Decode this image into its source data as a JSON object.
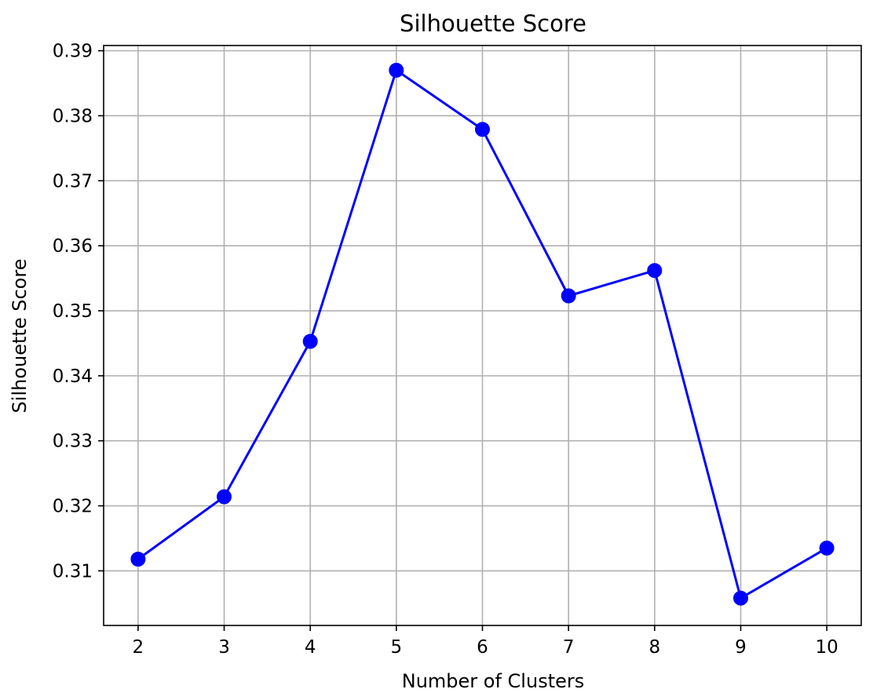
{
  "chart_data": {
    "type": "line",
    "title": "Silhouette Score",
    "xlabel": "Number of Clusters",
    "ylabel": "Silhouette Score",
    "x": [
      2,
      3,
      4,
      5,
      6,
      7,
      8,
      9,
      10
    ],
    "x_ticks": [
      "2",
      "3",
      "4",
      "5",
      "6",
      "7",
      "8",
      "9",
      "10"
    ],
    "y_ticks": [
      "0.31",
      "0.32",
      "0.33",
      "0.34",
      "0.35",
      "0.36",
      "0.37",
      "0.38",
      "0.39"
    ],
    "xlim": [
      1.6,
      10.4
    ],
    "ylim": [
      0.3016,
      0.3908
    ],
    "grid": true,
    "series": [
      {
        "values": [
          0.3118,
          0.3214,
          0.3453,
          0.387,
          0.3779,
          0.3523,
          0.3562,
          0.3058,
          0.3135
        ],
        "color": "#0000ff",
        "marker": "circle"
      }
    ]
  }
}
